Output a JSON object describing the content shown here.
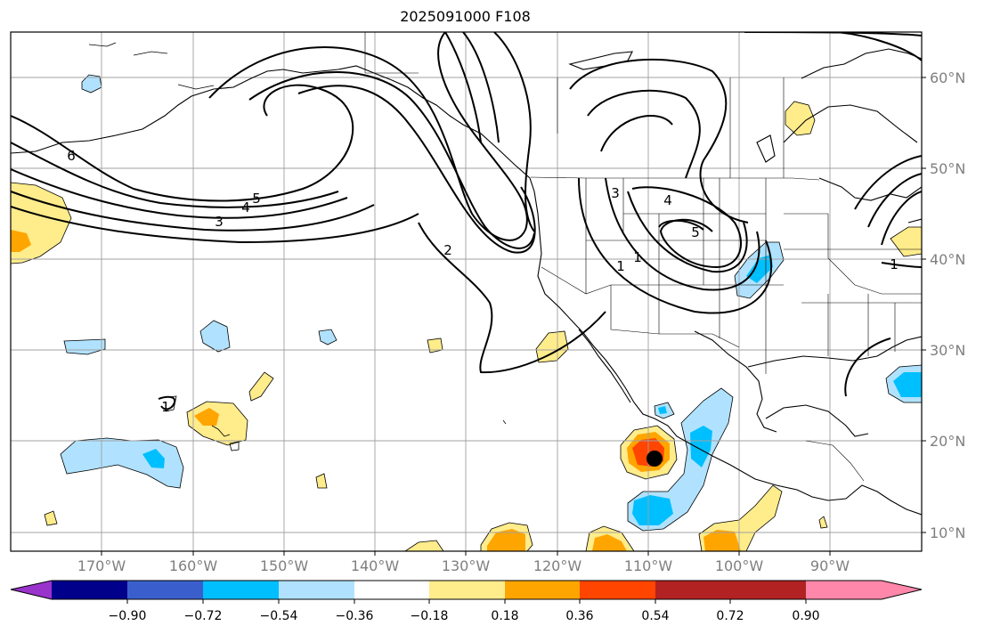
{
  "title": "2025091000 F108",
  "map": {
    "lat_labels": [
      "60°N",
      "50°N",
      "40°N",
      "30°N",
      "20°N",
      "10°N"
    ],
    "lon_labels": [
      "170°W",
      "160°W",
      "150°W",
      "140°W",
      "130°W",
      "120°W",
      "110°W",
      "100°W",
      "90°W"
    ],
    "contour_labels": [
      "6",
      "5",
      "4",
      "3",
      "2",
      "1",
      "3",
      "4",
      "5",
      "1",
      "1",
      "1"
    ]
  },
  "colorbar": {
    "tick_labels": [
      "−0.90",
      "−0.72",
      "−0.54",
      "−0.36",
      "−0.18",
      "0.18",
      "0.36",
      "0.54",
      "0.72",
      "0.90"
    ],
    "colors": [
      "#9933cc",
      "#00008b",
      "#3a5fcd",
      "#00bfff",
      "#b0e2ff",
      "#ffffff",
      "#ffec8b",
      "#ffa500",
      "#ff4500",
      "#b22222",
      "#ff88aa"
    ]
  },
  "fill_colors": {
    "light_yellow": "#ffec8b",
    "orange": "#ffa500",
    "red_orange": "#ff4500",
    "light_blue": "#b0e2ff",
    "blue": "#00bfff"
  }
}
